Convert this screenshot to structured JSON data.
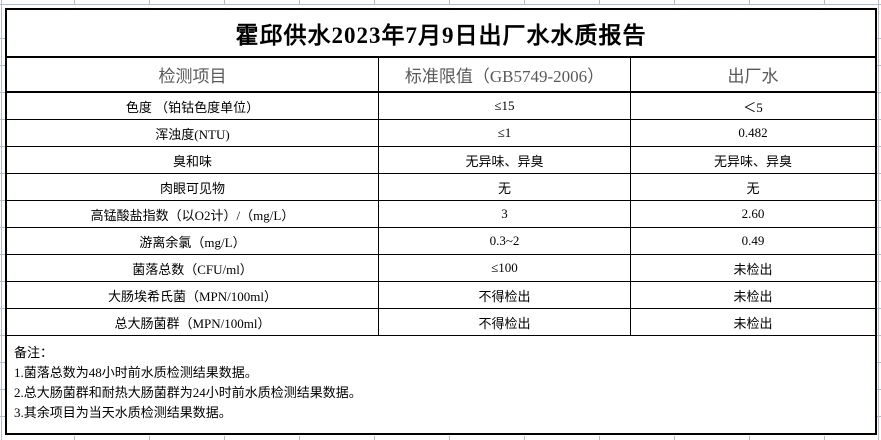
{
  "title": "霍邱供水2023年7月9日出厂水水质报告",
  "table": {
    "columns": {
      "item": "检测项目",
      "limit": "标准限值（GB5749-2006）",
      "value": "出厂水"
    },
    "rows": [
      {
        "item": "色度 （铂钴色度单位）",
        "limit": "≤15",
        "value": "＜5"
      },
      {
        "item": "浑浊度(NTU)",
        "limit": "≤1",
        "value": "0.482"
      },
      {
        "item": "臭和味",
        "limit": "无异味、异臭",
        "value": "无异味、异臭"
      },
      {
        "item": "肉眼可见物",
        "limit": "无",
        "value": "无"
      },
      {
        "item": "高锰酸盐指数（以O2计）/（mg/L）",
        "limit": "3",
        "value": "2.60"
      },
      {
        "item": "游离余氯（mg/L）",
        "limit": "0.3~2",
        "value": "0.49"
      },
      {
        "item": "菌落总数（CFU/ml）",
        "limit": "≤100",
        "value": "未检出"
      },
      {
        "item": "大肠埃希氏菌（MPN/100ml）",
        "limit": "不得检出",
        "value": "未检出"
      },
      {
        "item": "总大肠菌群（MPN/100ml）",
        "limit": "不得检出",
        "value": "未检出"
      }
    ]
  },
  "notes": {
    "label": "备注：",
    "items": [
      "1.菌落总数为48小时前水质检测结果数据。",
      "2.总大肠菌群和耐热大肠菌群为24小时前水质检测结果数据。",
      "3.其余项目为当天水质检测结果数据。"
    ]
  },
  "colors": {
    "background": "#ffffff",
    "table_border": "#000000",
    "header_text": "#595959",
    "body_text": "#000000",
    "gridline": "#b3bdd1"
  }
}
